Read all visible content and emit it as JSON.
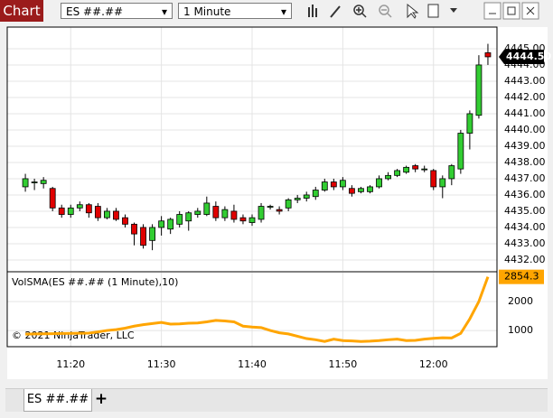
{
  "window": {
    "title": "Chart",
    "instrument": "ES ##.##",
    "interval": "1 Minute",
    "tab": "ES ##.##",
    "add_tab": "+"
  },
  "chart_data": [
    {
      "type": "candlestick",
      "x": [
        "11:15",
        "11:16",
        "11:17",
        "11:18",
        "11:19",
        "11:20",
        "11:21",
        "11:22",
        "11:23",
        "11:24",
        "11:25",
        "11:26",
        "11:27",
        "11:28",
        "11:29",
        "11:30",
        "11:31",
        "11:32",
        "11:33",
        "11:34",
        "11:35",
        "11:36",
        "11:37",
        "11:38",
        "11:39",
        "11:40",
        "11:41",
        "11:42",
        "11:43",
        "11:44",
        "11:45",
        "11:46",
        "11:47",
        "11:48",
        "11:49",
        "11:50",
        "11:51",
        "11:52",
        "11:53",
        "11:54",
        "11:55",
        "11:56",
        "11:57",
        "11:58",
        "11:59",
        "12:00",
        "12:01",
        "12:02",
        "12:03",
        "12:04",
        "12:05",
        "12:06"
      ],
      "open": [
        4436.5,
        4436.8,
        4436.7,
        4436.4,
        4435.2,
        4434.8,
        4435.2,
        4435.4,
        4435.3,
        4434.6,
        4435.0,
        4434.6,
        4434.2,
        4434.0,
        4433.2,
        4434.0,
        4433.9,
        4434.2,
        4434.4,
        4434.8,
        4434.8,
        4435.3,
        4434.6,
        4435.0,
        4434.6,
        4434.3,
        4434.5,
        4435.3,
        4435.1,
        4435.2,
        4435.7,
        4435.8,
        4435.9,
        4436.3,
        4436.8,
        4436.5,
        4436.4,
        4436.2,
        4436.2,
        4436.5,
        4437.0,
        4437.2,
        4437.4,
        4437.8,
        4437.6,
        4437.5,
        4436.5,
        4437.0,
        4437.6,
        4439.8,
        4440.9,
        4444.75
      ],
      "high": [
        4437.3,
        4437.0,
        4437.1,
        4436.5,
        4435.4,
        4435.4,
        4435.6,
        4435.5,
        4435.5,
        4435.2,
        4435.2,
        4434.8,
        4434.3,
        4434.2,
        4434.2,
        4434.7,
        4434.6,
        4435.0,
        4435.0,
        4435.2,
        4435.9,
        4435.6,
        4435.3,
        4435.4,
        4434.8,
        4434.8,
        4435.5,
        4435.4,
        4435.3,
        4435.8,
        4436.0,
        4436.2,
        4436.5,
        4437.0,
        4437.0,
        4437.1,
        4436.6,
        4436.5,
        4436.6,
        4437.2,
        4437.4,
        4437.6,
        4437.8,
        4437.9,
        4437.8,
        4437.6,
        4437.2,
        4437.9,
        4440.0,
        4441.2,
        4444.6,
        4445.3
      ],
      "low": [
        4436.2,
        4436.3,
        4436.4,
        4435.0,
        4434.6,
        4434.6,
        4435.0,
        4434.6,
        4434.4,
        4434.5,
        4434.4,
        4434.0,
        4432.9,
        4432.7,
        4432.6,
        4433.5,
        4433.6,
        4434.0,
        4433.8,
        4434.6,
        4434.7,
        4434.4,
        4434.4,
        4434.3,
        4434.2,
        4434.1,
        4434.3,
        4435.1,
        4434.8,
        4435.0,
        4435.5,
        4435.6,
        4435.7,
        4436.2,
        4436.3,
        4436.3,
        4435.9,
        4436.1,
        4436.1,
        4436.4,
        4436.9,
        4437.1,
        4437.3,
        4437.4,
        4437.4,
        4436.3,
        4435.8,
        4436.6,
        4437.3,
        4438.8,
        4440.7,
        4444.0
      ],
      "close": [
        4437.0,
        4436.8,
        4436.9,
        4435.2,
        4434.8,
        4435.2,
        4435.4,
        4434.9,
        4434.6,
        4435.0,
        4434.5,
        4434.2,
        4433.6,
        4432.9,
        4434.0,
        4434.4,
        4434.5,
        4434.8,
        4434.9,
        4435.0,
        4435.5,
        4434.6,
        4435.1,
        4434.5,
        4434.4,
        4434.6,
        4435.3,
        4435.3,
        4435.0,
        4435.7,
        4435.8,
        4436.0,
        4436.3,
        4436.8,
        4436.5,
        4436.9,
        4436.1,
        4436.4,
        4436.5,
        4437.0,
        4437.2,
        4437.5,
        4437.7,
        4437.6,
        4437.6,
        4436.5,
        4437.0,
        4437.8,
        4439.8,
        4441.0,
        4444.0,
        4444.5
      ],
      "up_color": "#32cd32",
      "down_color": "#e00000",
      "last_price": {
        "value": 4444.5,
        "label": "4444.50"
      },
      "xlim": [
        "11:13",
        "12:07"
      ],
      "xticks": [
        "11:20",
        "11:30",
        "11:40",
        "11:50",
        "12:00"
      ],
      "ylim": [
        4431.33,
        4446.33
      ],
      "yticks": [
        {
          "value": 4432,
          "label": "4432.00"
        },
        {
          "value": 4433,
          "label": "4433.00"
        },
        {
          "value": 4434,
          "label": "4434.00"
        },
        {
          "value": 4435,
          "label": "4435.00"
        },
        {
          "value": 4436,
          "label": "4436.00"
        },
        {
          "value": 4437,
          "label": "4437.00"
        },
        {
          "value": 4438,
          "label": "4438.00"
        },
        {
          "value": 4439,
          "label": "4439.00"
        },
        {
          "value": 4440,
          "label": "4440.00"
        },
        {
          "value": 4441,
          "label": "4441.00"
        },
        {
          "value": 4442,
          "label": "4442.00"
        },
        {
          "value": 4443,
          "label": "4443.00"
        },
        {
          "value": 4444,
          "label": "4444.00"
        },
        {
          "value": 4445,
          "label": "4445.00"
        }
      ],
      "grid": true
    },
    {
      "type": "line",
      "title": "VolSMA(ES ##.## (1 Minute),10)",
      "annotation": "© 2021 NinjaTrader, LLC",
      "color": "#ffa500",
      "values": [
        875,
        880,
        885,
        890,
        895,
        900,
        905,
        910,
        950,
        1000,
        1030,
        1080,
        1150,
        1200,
        1240,
        1280,
        1220,
        1230,
        1250,
        1260,
        1300,
        1350,
        1330,
        1300,
        1150,
        1120,
        1100,
        1000,
        920,
        880,
        800,
        720,
        680,
        620,
        700,
        650,
        640,
        620,
        630,
        650,
        680,
        700,
        650,
        660,
        700,
        730,
        750,
        740,
        900,
        1400,
        2000,
        2854.3
      ],
      "ylim": [
        440,
        3000
      ],
      "yticks": [
        1000,
        2000
      ],
      "grid": true
    }
  ]
}
